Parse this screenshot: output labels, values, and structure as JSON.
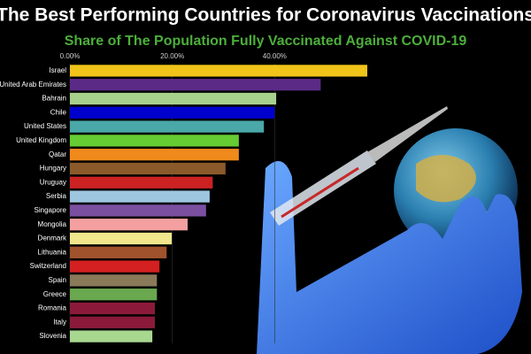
{
  "chart_data": {
    "type": "bar",
    "orientation": "horizontal",
    "title": "The Best Performing Countries for Coronavirus Vaccinations",
    "subtitle": "Share of The Population Fully Vaccinated Against COVID-19",
    "categories": [
      "Israel",
      "United Arab Emirates",
      "Bahrain",
      "Chile",
      "United States",
      "United Kingdom",
      "Qatar",
      "Hungary",
      "Uruguay",
      "Serbia",
      "Singapore",
      "Mongolia",
      "Denmark",
      "Lithuania",
      "Switzerland",
      "Spain",
      "Greece",
      "Romania",
      "Italy",
      "Slovenia"
    ],
    "values": [
      58.1,
      49.0,
      40.3,
      40.0,
      37.9,
      33.0,
      33.0,
      30.4,
      27.9,
      27.3,
      26.6,
      23.0,
      19.9,
      18.9,
      17.5,
      17.0,
      17.0,
      16.6,
      16.6,
      16.1
    ],
    "colors": [
      "#f0c419",
      "#5b2a86",
      "#a8d08d",
      "#0000cc",
      "#4aa8a8",
      "#66cc33",
      "#f08a1c",
      "#8b5a2b",
      "#cc2222",
      "#9ec5e0",
      "#7b4fa0",
      "#f4a0a0",
      "#f0e68c",
      "#a0522d",
      "#d42020",
      "#8a7a5a",
      "#6aa84f",
      "#8b1a3a",
      "#8b1a3a",
      "#a8d890"
    ],
    "xlim": [
      0,
      60
    ],
    "xticks": [
      {
        "value": 0,
        "label": "0.00%"
      },
      {
        "value": 20,
        "label": "20.00%"
      },
      {
        "value": 40,
        "label": "40.00%"
      }
    ],
    "grid": true
  }
}
